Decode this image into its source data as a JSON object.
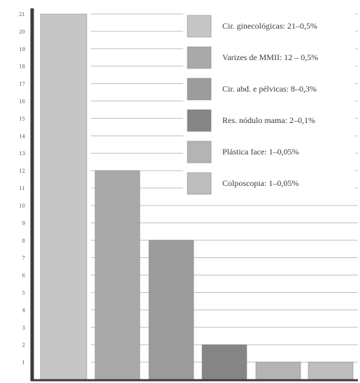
{
  "chart_data": {
    "type": "bar",
    "title": "",
    "xlabel": "",
    "ylabel": "",
    "ylim": [
      0,
      21
    ],
    "yticks": [
      1,
      2,
      3,
      4,
      5,
      6,
      7,
      8,
      9,
      10,
      11,
      12,
      13,
      14,
      15,
      16,
      17,
      18,
      19,
      20,
      21
    ],
    "grid": true,
    "legend_position": "top-right",
    "categories": [
      "Cir. ginecológicas: 21–0,5%",
      "Varizes de MMII: 12 – 0,5%",
      "Cir. abd. e pélvicas: 8–0,3%",
      "Res. nódulo mama: 2–0,1%",
      "Plástica face: 1–0,05%",
      "Colposcopia: 1–0,05%"
    ],
    "values": [
      21,
      12,
      8,
      2,
      1,
      1
    ],
    "colors": [
      "#c6c6c6",
      "#a9a9a9",
      "#9c9c9c",
      "#858585",
      "#b4b4b4",
      "#bdbdbd"
    ]
  }
}
